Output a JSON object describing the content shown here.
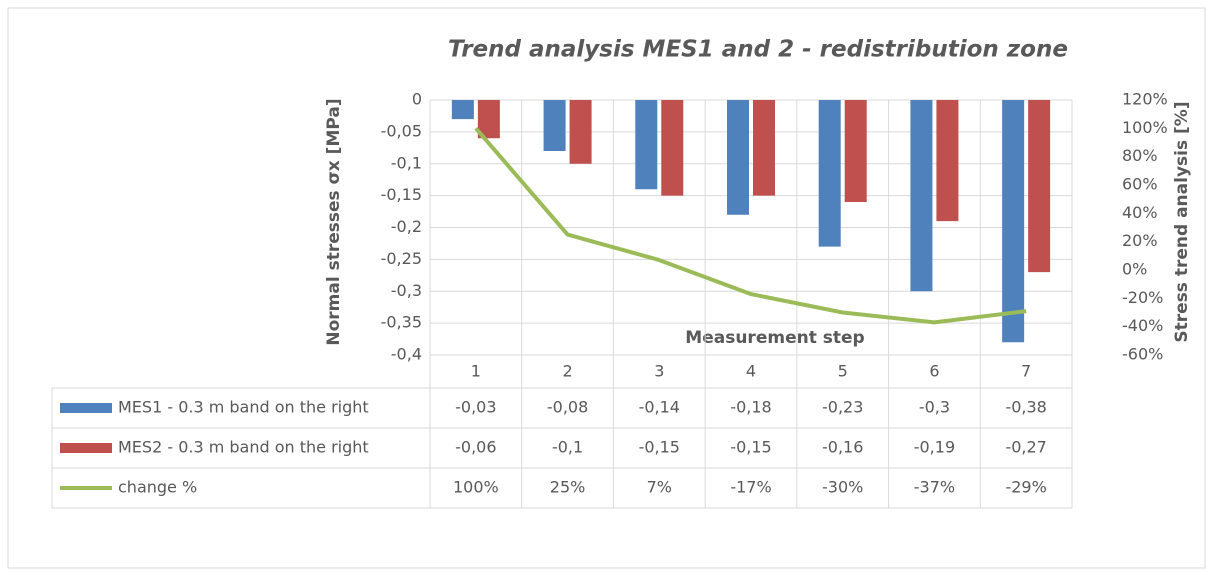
{
  "chart_data": {
    "type": "bar",
    "title": "Trend analysis MES1 and 2 - redistribution zone",
    "x_label": "Measurement step",
    "y_label": "Normal stresses σx [MPa]",
    "y2_label": "Stress trend analysis [%]",
    "categories": [
      "1",
      "2",
      "3",
      "4",
      "5",
      "6",
      "7"
    ],
    "series": [
      {
        "name": "MES1 - 0.3 m band on the right",
        "color": "#4f81bd",
        "type": "bar",
        "values": [
          -0.03,
          -0.08,
          -0.14,
          -0.18,
          -0.23,
          -0.3,
          -0.38
        ],
        "value_labels": [
          "-0,03",
          "-0,08",
          "-0,14",
          "-0,18",
          "-0,23",
          "-0,3",
          "-0,38"
        ]
      },
      {
        "name": "MES2 - 0.3 m band on the right",
        "color": "#c0504d",
        "type": "bar",
        "values": [
          -0.06,
          -0.1,
          -0.15,
          -0.15,
          -0.16,
          -0.19,
          -0.27
        ],
        "value_labels": [
          "-0,06",
          "-0,1",
          "-0,15",
          "-0,15",
          "-0,16",
          "-0,19",
          "-0,27"
        ]
      },
      {
        "name": "change %",
        "color": "#9bbb59",
        "type": "line",
        "axis": "y2",
        "values": [
          100,
          25,
          7,
          -17,
          -30,
          -37,
          -29
        ],
        "value_labels": [
          "100%",
          "25%",
          "7%",
          "-17%",
          "-30%",
          "-37%",
          "-29%"
        ]
      }
    ],
    "ylim": [
      -0.4,
      0
    ],
    "yticks": [
      0,
      {
        "value": -0.05,
        "label": "-0,05"
      },
      {
        "value": -0.1,
        "label": "-0,1"
      },
      {
        "value": -0.15,
        "label": "-0,15"
      },
      {
        "value": -0.2,
        "label": "-0,2"
      },
      {
        "value": -0.25,
        "label": "-0,25"
      },
      {
        "value": -0.3,
        "label": "-0,3"
      },
      {
        "value": -0.35,
        "label": "-0,35"
      },
      {
        "value": -0.4,
        "label": "-0,4"
      }
    ],
    "y2lim": [
      -60,
      120
    ],
    "y2ticks": [
      {
        "value": 120,
        "label": "120%"
      },
      {
        "value": 100,
        "label": "100%"
      },
      {
        "value": 80,
        "label": "80%"
      },
      {
        "value": 60,
        "label": "60%"
      },
      {
        "value": 40,
        "label": "40%"
      },
      {
        "value": 20,
        "label": "20%"
      },
      {
        "value": 0,
        "label": "0%"
      },
      {
        "value": -20,
        "label": "-20%"
      },
      {
        "value": -40,
        "label": "-40%"
      },
      {
        "value": -60,
        "label": "-60%"
      }
    ],
    "grid": true
  }
}
